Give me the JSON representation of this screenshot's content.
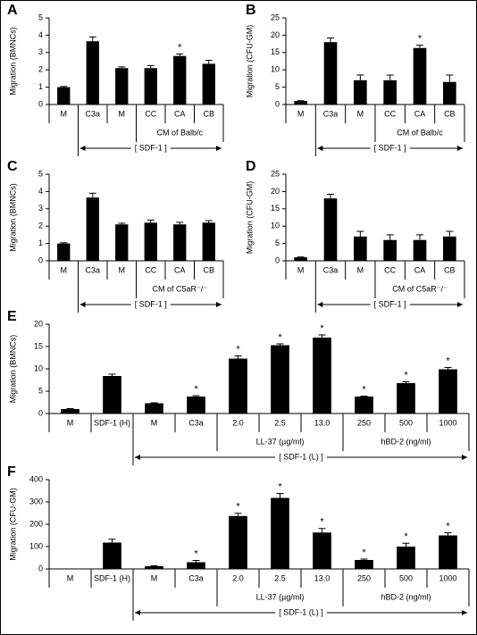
{
  "chart_data": [
    {
      "type": "bar",
      "panel": "A",
      "ylabel": "Migration (BMNCs)",
      "categories": [
        "M",
        "C3a",
        "M",
        "CC",
        "CA",
        "CB"
      ],
      "values": [
        1.0,
        3.65,
        2.1,
        2.1,
        2.8,
        2.35
      ],
      "errors": [
        0.04,
        0.25,
        0.07,
        0.15,
        0.12,
        0.2
      ],
      "significance": [
        null,
        null,
        null,
        null,
        "*",
        null
      ],
      "ylim": [
        0,
        5
      ],
      "yticks": [
        0,
        1,
        2,
        3,
        4,
        5
      ],
      "color": "#000000",
      "groups": [
        {
          "label": "CM of Balb/c",
          "span": [
            3,
            5
          ]
        }
      ],
      "bracket": {
        "label": "[ SDF-1 ]",
        "span": [
          1,
          5
        ]
      }
    },
    {
      "type": "bar",
      "panel": "B",
      "ylabel": "Migration (CFU-GM)",
      "categories": [
        "M",
        "C3a",
        "M",
        "CC",
        "CA",
        "CB"
      ],
      "values": [
        1.0,
        18,
        7,
        7,
        16.3,
        6.5
      ],
      "errors": [
        0.1,
        1.2,
        1.5,
        1.5,
        0.8,
        2
      ],
      "significance": [
        null,
        null,
        null,
        null,
        "*",
        null
      ],
      "ylim": [
        0,
        25
      ],
      "yticks": [
        0,
        5,
        10,
        15,
        20,
        25
      ],
      "color": "#000000",
      "groups": [
        {
          "label": "CM of Balb/c",
          "span": [
            3,
            5
          ]
        }
      ],
      "bracket": {
        "label": "[ SDF-1 ]",
        "span": [
          1,
          5
        ]
      }
    },
    {
      "type": "bar",
      "panel": "C",
      "ylabel": "Migration (BMNCs)",
      "categories": [
        "M",
        "C3a",
        "M",
        "CC",
        "CA",
        "CB"
      ],
      "values": [
        1.0,
        3.65,
        2.1,
        2.2,
        2.1,
        2.2
      ],
      "errors": [
        0.04,
        0.25,
        0.07,
        0.15,
        0.12,
        0.12
      ],
      "significance": [
        null,
        null,
        null,
        null,
        null,
        null
      ],
      "ylim": [
        0,
        5
      ],
      "yticks": [
        0,
        1,
        2,
        3,
        4,
        5
      ],
      "color": "#000000",
      "groups": [
        {
          "label": "CM of C5aR⁻/⁻",
          "span": [
            3,
            5
          ]
        }
      ],
      "bracket": {
        "label": "[ SDF-1 ]",
        "span": [
          1,
          5
        ]
      }
    },
    {
      "type": "bar",
      "panel": "D",
      "ylabel": "Migration (CFU-GM)",
      "categories": [
        "M",
        "C3a",
        "M",
        "CC",
        "CA",
        "CB"
      ],
      "values": [
        1.0,
        18,
        7,
        6,
        6,
        7
      ],
      "errors": [
        0.1,
        1.2,
        1.5,
        1.5,
        1.5,
        1.5
      ],
      "significance": [
        null,
        null,
        null,
        null,
        null,
        null
      ],
      "ylim": [
        0,
        25
      ],
      "yticks": [
        0,
        5,
        10,
        15,
        20,
        25
      ],
      "color": "#000000",
      "groups": [
        {
          "label": "CM of C5aR⁻/⁻",
          "span": [
            3,
            5
          ]
        }
      ],
      "bracket": {
        "label": "[ SDF-1 ]",
        "span": [
          1,
          5
        ]
      }
    },
    {
      "type": "bar",
      "panel": "E",
      "ylabel": "Migration (BMNCs)",
      "categories": [
        "M",
        "SDF-1 (H)",
        "M",
        "C3a",
        "2.0",
        "2.5",
        "13.0",
        "250",
        "500",
        "1000"
      ],
      "values": [
        1.0,
        8.4,
        2.3,
        3.8,
        12.3,
        15.3,
        17,
        3.8,
        6.8,
        9.9
      ],
      "errors": [
        0.1,
        0.4,
        0.1,
        0.2,
        0.6,
        0.3,
        0.6,
        0.1,
        0.3,
        0.4
      ],
      "significance": [
        null,
        null,
        null,
        "*",
        "*",
        "*",
        "*",
        "*",
        "*",
        "*"
      ],
      "ylim": [
        0,
        20
      ],
      "yticks": [
        0,
        5,
        10,
        15,
        20
      ],
      "color": "#000000",
      "groups": [
        {
          "label": "LL-37 (µg/ml)",
          "span": [
            4,
            6
          ]
        },
        {
          "label": "hBD-2 (ng/ml)",
          "span": [
            7,
            9
          ]
        }
      ],
      "bracket": {
        "label": "[ SDF-1 (L) ]",
        "span": [
          2,
          9
        ]
      }
    },
    {
      "type": "bar",
      "panel": "F",
      "ylabel": "Migration (CFU-GM)",
      "categories": [
        "M",
        "SDF-1 (H)",
        "M",
        "C3a",
        "2.0",
        "2.5",
        "13.0",
        "250",
        "500",
        "1000"
      ],
      "values": [
        0,
        118,
        12,
        30,
        237,
        318,
        163,
        40,
        100,
        150
      ],
      "errors": [
        0,
        15,
        2,
        8,
        12,
        20,
        18,
        4,
        15,
        12
      ],
      "significance": [
        null,
        null,
        null,
        "*",
        "*",
        "*",
        "*",
        "*",
        "*",
        "*"
      ],
      "ylim": [
        0,
        400
      ],
      "yticks": [
        0,
        100,
        200,
        300,
        400
      ],
      "color": "#000000",
      "groups": [
        {
          "label": "LL-37 (µg/ml)",
          "span": [
            4,
            6
          ]
        },
        {
          "label": "hBD-2 (ng/ml)",
          "span": [
            7,
            9
          ]
        }
      ],
      "bracket": {
        "label": "[ SDF-1 (L) ]",
        "span": [
          2,
          9
        ]
      }
    }
  ]
}
